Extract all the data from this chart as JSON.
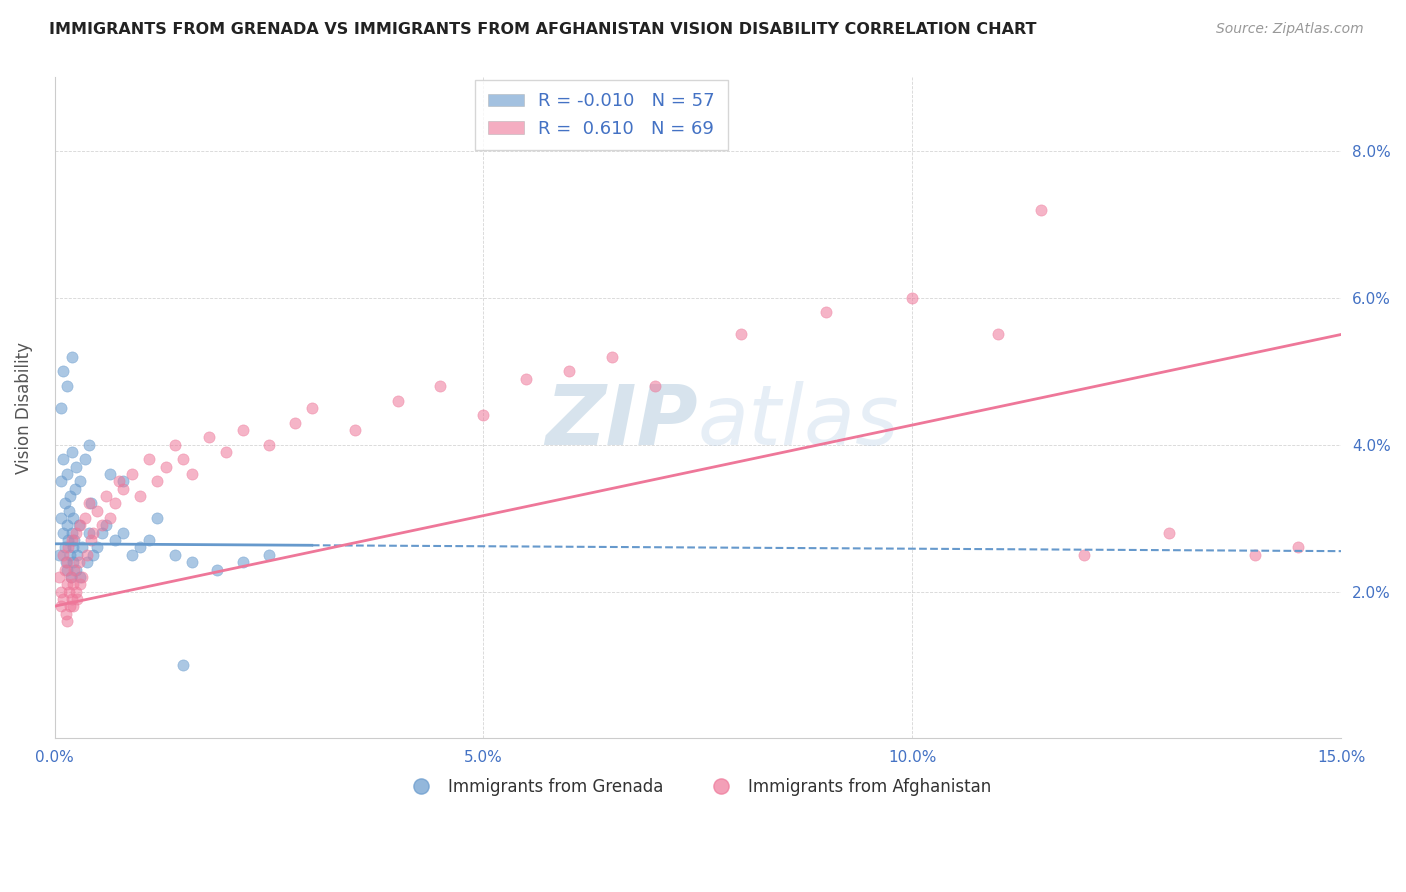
{
  "title": "IMMIGRANTS FROM GRENADA VS IMMIGRANTS FROM AFGHANISTAN VISION DISABILITY CORRELATION CHART",
  "source": "Source: ZipAtlas.com",
  "ylabel": "Vision Disability",
  "xlim": [
    0.0,
    15.0
  ],
  "ylim": [
    0.0,
    9.0
  ],
  "xlabel_ticks": [
    0.0,
    5.0,
    10.0,
    15.0
  ],
  "ylabel_ticks": [
    0.0,
    2.0,
    4.0,
    6.0,
    8.0
  ],
  "ylabel_labels": [
    "",
    "2.0%",
    "4.0%",
    "6.0%",
    "8.0%"
  ],
  "grenada_color": "#6699cc",
  "afghanistan_color": "#ee7799",
  "grenada_R": -0.01,
  "grenada_N": 57,
  "afghanistan_R": 0.61,
  "afghanistan_N": 69,
  "legend_label_1": "Immigrants from Grenada",
  "legend_label_2": "Immigrants from Afghanistan",
  "grenada_x": [
    0.05,
    0.07,
    0.08,
    0.1,
    0.1,
    0.12,
    0.12,
    0.13,
    0.14,
    0.15,
    0.15,
    0.16,
    0.17,
    0.18,
    0.18,
    0.19,
    0.2,
    0.2,
    0.21,
    0.22,
    0.22,
    0.23,
    0.24,
    0.25,
    0.25,
    0.26,
    0.28,
    0.3,
    0.3,
    0.32,
    0.35,
    0.38,
    0.4,
    0.42,
    0.45,
    0.5,
    0.55,
    0.6,
    0.65,
    0.7,
    0.8,
    0.9,
    1.0,
    1.1,
    1.2,
    1.4,
    1.6,
    1.9,
    2.2,
    2.5,
    0.08,
    0.1,
    0.15,
    0.2,
    0.4,
    0.8,
    1.5
  ],
  "grenada_y": [
    2.5,
    3.0,
    3.5,
    2.8,
    3.8,
    2.6,
    3.2,
    2.4,
    2.9,
    2.3,
    3.6,
    2.7,
    3.1,
    2.5,
    3.3,
    2.2,
    2.8,
    3.9,
    2.6,
    2.4,
    3.0,
    2.7,
    3.4,
    2.3,
    3.7,
    2.5,
    2.9,
    2.2,
    3.5,
    2.6,
    3.8,
    2.4,
    2.8,
    3.2,
    2.5,
    2.6,
    2.8,
    2.9,
    3.6,
    2.7,
    2.8,
    2.5,
    2.6,
    2.7,
    3.0,
    2.5,
    2.4,
    2.3,
    2.4,
    2.5,
    4.5,
    5.0,
    4.8,
    5.2,
    4.0,
    3.5,
    1.0
  ],
  "afghanistan_x": [
    0.05,
    0.07,
    0.08,
    0.1,
    0.1,
    0.12,
    0.13,
    0.14,
    0.15,
    0.15,
    0.16,
    0.17,
    0.18,
    0.19,
    0.2,
    0.2,
    0.21,
    0.22,
    0.23,
    0.25,
    0.25,
    0.26,
    0.28,
    0.3,
    0.3,
    0.32,
    0.35,
    0.38,
    0.4,
    0.42,
    0.45,
    0.5,
    0.55,
    0.6,
    0.65,
    0.7,
    0.75,
    0.8,
    0.9,
    1.0,
    1.1,
    1.2,
    1.3,
    1.4,
    1.5,
    1.6,
    1.8,
    2.0,
    2.2,
    2.5,
    2.8,
    3.0,
    3.5,
    4.0,
    4.5,
    5.0,
    5.5,
    6.0,
    6.5,
    7.0,
    8.0,
    9.0,
    10.0,
    11.0,
    11.5,
    12.0,
    13.0,
    14.0,
    14.5
  ],
  "afghanistan_y": [
    2.2,
    1.8,
    2.0,
    1.9,
    2.5,
    2.3,
    1.7,
    2.1,
    2.4,
    1.6,
    2.6,
    2.0,
    1.8,
    2.2,
    1.9,
    2.7,
    2.1,
    1.8,
    2.3,
    2.0,
    2.8,
    1.9,
    2.4,
    2.1,
    2.9,
    2.2,
    3.0,
    2.5,
    3.2,
    2.7,
    2.8,
    3.1,
    2.9,
    3.3,
    3.0,
    3.2,
    3.5,
    3.4,
    3.6,
    3.3,
    3.8,
    3.5,
    3.7,
    4.0,
    3.8,
    3.6,
    4.1,
    3.9,
    4.2,
    4.0,
    4.3,
    4.5,
    4.2,
    4.6,
    4.8,
    4.4,
    4.9,
    5.0,
    5.2,
    4.8,
    5.5,
    5.8,
    6.0,
    5.5,
    7.2,
    2.5,
    2.8,
    2.5,
    2.6
  ],
  "grenada_trendline_solid_end": 3.0,
  "grenada_trend_y0": 2.65,
  "grenada_trend_y1": 2.55,
  "afghanistan_trend_y0": 1.8,
  "afghanistan_trend_y1": 5.5
}
